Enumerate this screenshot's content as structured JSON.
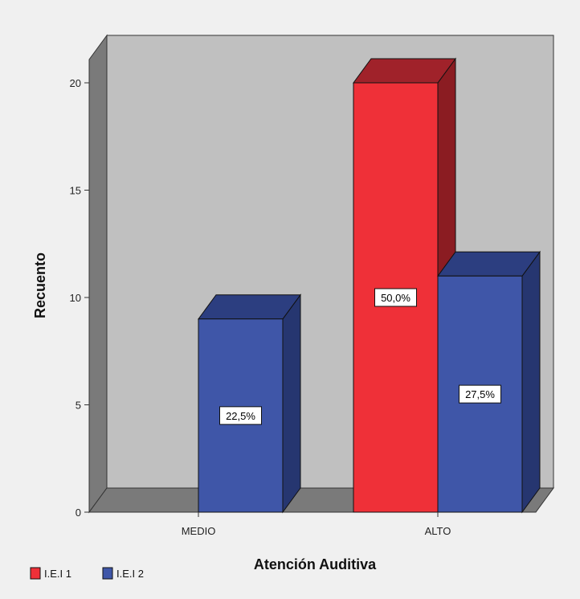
{
  "chart_data": {
    "type": "bar",
    "style": "3d-clustered",
    "xlabel": "Atención Auditiva",
    "ylabel": "Recuento",
    "categories": [
      "MEDIO",
      "ALTO"
    ],
    "ylim": [
      0,
      20
    ],
    "yticks": [
      0,
      5,
      10,
      15,
      20
    ],
    "series": [
      {
        "name": "I.E.I 1",
        "values": [
          0,
          20
        ],
        "labels": [
          "",
          "50,0%"
        ],
        "color": "#ef3038",
        "side_color": "#8b1c22",
        "top_color": "#a0222a"
      },
      {
        "name": "I.E.I 2",
        "values": [
          9,
          11
        ],
        "labels": [
          "22,5%",
          "27,5%"
        ],
        "color": "#3f56a8",
        "side_color": "#263670",
        "top_color": "#2c3e80"
      }
    ],
    "legend_position": "bottom-left",
    "colors": {
      "background": "#f0f0f0",
      "plot_back": "#c0c0c0",
      "plot_left_wall": "#7a7a7a",
      "plot_floor": "#7a7a7a"
    }
  }
}
